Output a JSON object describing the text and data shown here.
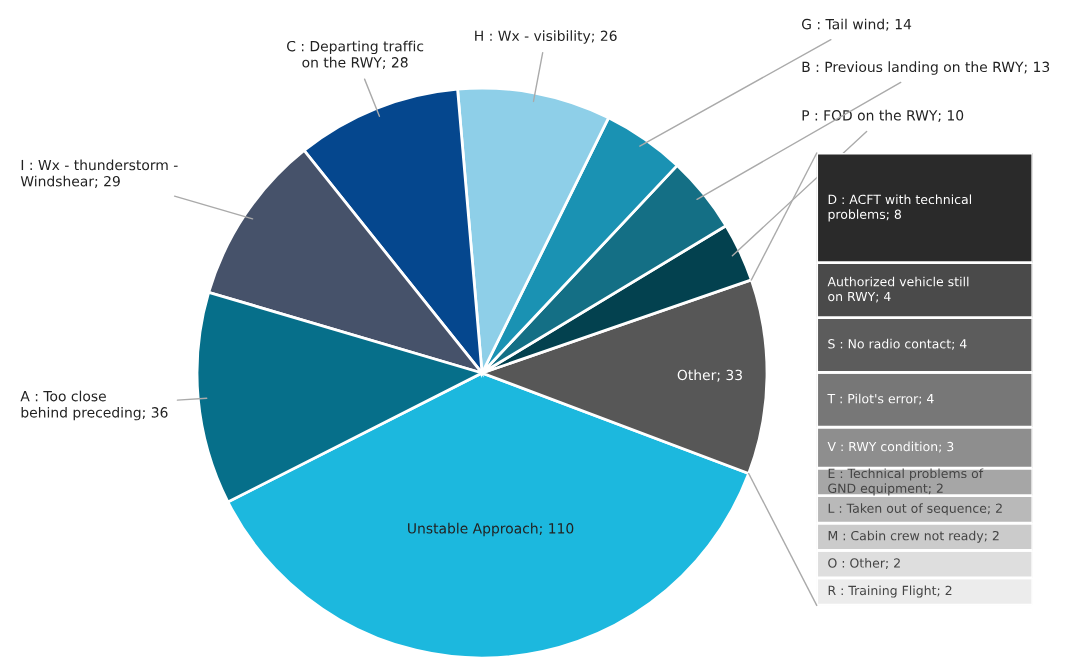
{
  "chart_data": [
    {
      "type": "pie",
      "categories": [
        "Unstable Approach",
        "Other",
        "P : FOD on the RWY",
        "B : Previous landing on the RWY",
        "G : Tail wind",
        "H : Wx - visibility",
        "C : Departing traffic\non the RWY",
        "I : Wx - thunderstorm -\nWindshear",
        "A : Too close\nbehind preceding"
      ],
      "values": [
        110,
        33,
        10,
        13,
        14,
        26,
        28,
        29,
        36
      ],
      "colors": [
        "#1cb8de",
        "#575757",
        "#03414f",
        "#146f85",
        "#1a92b3",
        "#8ecfe8",
        "#05478e",
        "#46526a",
        "#066f8a"
      ],
      "value_labels": [
        "; 110",
        "; 33",
        "; 10",
        "; 13",
        "; 14",
        "; 26",
        "; 28",
        "; 29",
        "; 36"
      ]
    },
    {
      "type": "bar",
      "stacked": true,
      "categories": [
        null
      ],
      "tick_labels": false,
      "series": [
        {
          "name": "R : Training Flight",
          "color": "#ececec",
          "values": [
            2
          ],
          "value_labels": [
            "; 2"
          ]
        },
        {
          "name": "O : Other",
          "color": "#dedede",
          "values": [
            2
          ],
          "value_labels": [
            "; 2"
          ]
        },
        {
          "name": "M : Cabin crew not ready",
          "color": "#cbcbcb",
          "values": [
            2
          ],
          "value_labels": [
            "; 2"
          ]
        },
        {
          "name": "L : Taken out of sequence",
          "color": "#b9b9b9",
          "values": [
            2
          ],
          "value_labels": [
            "; 2"
          ]
        },
        {
          "name": "E : Technical problems of\nGND equipment",
          "color": "#a6a6a6",
          "values": [
            2
          ],
          "value_labels": [
            "; 2"
          ]
        },
        {
          "name": "V : RWY condition",
          "color": "#8e8e8e",
          "values": [
            3
          ],
          "value_labels": [
            "; 3"
          ]
        },
        {
          "name": "T : Pilot's error",
          "color": "#777777",
          "values": [
            4
          ],
          "value_labels": [
            "; 4"
          ]
        },
        {
          "name": "S : No radio contact",
          "color": "#5c5c5c",
          "values": [
            4
          ],
          "value_labels": [
            "; 4"
          ]
        },
        {
          "name": "Authorized vehicle still\non RWY",
          "color": "#4a4a4a",
          "values": [
            4
          ],
          "value_labels": [
            "; 4"
          ]
        },
        {
          "name": "D : ACFT with technical\nproblems",
          "color": "#2a2a2a",
          "values": [
            8
          ],
          "value_labels": [
            "; 8"
          ]
        }
      ]
    }
  ]
}
